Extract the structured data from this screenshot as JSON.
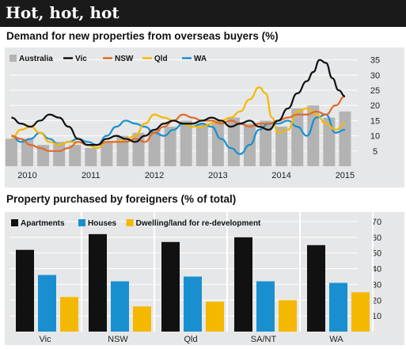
{
  "page_title": "Hot, hot, hot",
  "chart_data": [
    {
      "type": "line",
      "title": "Demand for new properties from overseas buyers (%)",
      "x_tick_labels": [
        "2010",
        "2011",
        "2012",
        "2013",
        "2014",
        "2015"
      ],
      "x_ticks": [
        2010,
        2011,
        2012,
        2013,
        2014,
        2015
      ],
      "xlim": [
        2009.72,
        2015.2
      ],
      "ylim": [
        0,
        37
      ],
      "y_ticks": [
        5,
        10,
        15,
        20,
        25,
        30,
        35
      ],
      "y_axis_side": "right",
      "grid": "horizontal",
      "legend_position": "top",
      "bar_series": {
        "name": "Australia",
        "color": "#b3b3b3",
        "x": [
          2009.75,
          2010.0,
          2010.25,
          2010.5,
          2010.75,
          2011.0,
          2011.25,
          2011.5,
          2011.75,
          2012.0,
          2012.25,
          2012.5,
          2012.75,
          2013.0,
          2013.25,
          2013.5,
          2013.75,
          2014.0,
          2014.25,
          2014.5,
          2014.75,
          2015.0
        ],
        "values": [
          9,
          9,
          7,
          8,
          7,
          6,
          8,
          10,
          11,
          12,
          13,
          15,
          14,
          15,
          16,
          14,
          15,
          13,
          19,
          20,
          16,
          18
        ]
      },
      "series": [
        {
          "name": "Vic",
          "color": "#111111",
          "x": [
            2009.75,
            2009.9,
            2010.05,
            2010.2,
            2010.35,
            2010.5,
            2010.65,
            2010.8,
            2010.95,
            2011.1,
            2011.25,
            2011.4,
            2011.55,
            2011.7,
            2011.85,
            2012.0,
            2012.15,
            2012.3,
            2012.45,
            2012.6,
            2012.75,
            2012.9,
            2013.05,
            2013.2,
            2013.35,
            2013.5,
            2013.65,
            2013.8,
            2013.95,
            2014.1,
            2014.25,
            2014.4,
            2014.5,
            2014.6,
            2014.7,
            2014.8,
            2014.9,
            2015.0
          ],
          "values": [
            16,
            14,
            13,
            15,
            17,
            16,
            13,
            9,
            7,
            7,
            9,
            10,
            9,
            8,
            10,
            12,
            14,
            15,
            14,
            14,
            15,
            16,
            15,
            13,
            14,
            15,
            13,
            12,
            15,
            19,
            24,
            28,
            31,
            35,
            34,
            29,
            25,
            23
          ]
        },
        {
          "name": "NSW",
          "color": "#e06b2c",
          "x": [
            2009.75,
            2009.9,
            2010.05,
            2010.2,
            2010.35,
            2010.5,
            2010.65,
            2010.8,
            2010.95,
            2011.1,
            2011.25,
            2011.4,
            2011.55,
            2011.7,
            2011.85,
            2012.0,
            2012.15,
            2012.3,
            2012.45,
            2012.6,
            2012.75,
            2012.9,
            2013.05,
            2013.2,
            2013.35,
            2013.5,
            2013.65,
            2013.8,
            2013.95,
            2014.1,
            2014.25,
            2014.4,
            2014.55,
            2014.7,
            2014.85,
            2015.0
          ],
          "values": [
            10,
            9,
            7,
            6,
            5,
            5,
            6,
            8,
            7,
            7,
            8,
            8,
            8,
            9,
            8,
            11,
            13,
            15,
            17,
            16,
            15,
            15,
            14,
            15,
            14,
            13,
            14,
            14,
            15,
            16,
            17,
            17,
            18,
            17,
            20,
            23
          ]
        },
        {
          "name": "Qld",
          "color": "#f5b800",
          "x": [
            2009.75,
            2009.9,
            2010.05,
            2010.2,
            2010.35,
            2010.5,
            2010.65,
            2010.8,
            2010.95,
            2011.1,
            2011.25,
            2011.4,
            2011.55,
            2011.7,
            2011.85,
            2012.0,
            2012.15,
            2012.3,
            2012.45,
            2012.6,
            2012.75,
            2012.9,
            2013.05,
            2013.2,
            2013.35,
            2013.5,
            2013.65,
            2013.75,
            2013.85,
            2013.95,
            2014.1,
            2014.25,
            2014.4,
            2014.55,
            2014.7,
            2014.85,
            2015.0
          ],
          "values": [
            9,
            12,
            13,
            11,
            8,
            7,
            8,
            8,
            7,
            6,
            8,
            8,
            9,
            10,
            14,
            17,
            16,
            15,
            14,
            13,
            13,
            14,
            15,
            16,
            18,
            22,
            26,
            24,
            16,
            11,
            12,
            18,
            19,
            17,
            14,
            12,
            14
          ]
        },
        {
          "name": "WA",
          "color": "#1a8fd0",
          "x": [
            2009.75,
            2009.9,
            2010.05,
            2010.2,
            2010.35,
            2010.5,
            2010.65,
            2010.8,
            2010.95,
            2011.1,
            2011.25,
            2011.4,
            2011.55,
            2011.7,
            2011.85,
            2012.0,
            2012.15,
            2012.3,
            2012.45,
            2012.6,
            2012.75,
            2012.9,
            2013.05,
            2013.2,
            2013.35,
            2013.5,
            2013.65,
            2013.8,
            2013.95,
            2014.1,
            2014.25,
            2014.4,
            2014.55,
            2014.7,
            2014.85,
            2015.0
          ],
          "values": [
            10,
            8,
            9,
            11,
            9,
            7,
            8,
            9,
            8,
            7,
            10,
            13,
            15,
            14,
            13,
            11,
            10,
            12,
            14,
            13,
            14,
            13,
            9,
            6,
            4,
            7,
            12,
            14,
            14,
            15,
            13,
            10,
            16,
            17,
            11,
            12
          ]
        }
      ]
    },
    {
      "type": "bar",
      "title": "Property purchased by foreigners (% of total)",
      "categories": [
        "Vic",
        "NSW",
        "Qld",
        "SA/NT",
        "WA"
      ],
      "ylim": [
        0,
        73
      ],
      "y_ticks": [
        10,
        20,
        30,
        40,
        50,
        60,
        70
      ],
      "y_axis_side": "right",
      "grid": "horizontal",
      "legend_position": "top",
      "series": [
        {
          "name": "Apartments",
          "color": "#111111",
          "values": [
            52,
            62,
            57,
            60,
            55
          ]
        },
        {
          "name": "Houses",
          "color": "#1a8fd0",
          "values": [
            36,
            32,
            35,
            32,
            31
          ]
        },
        {
          "name": "Dwelling/land for re-development",
          "color": "#f5b800",
          "values": [
            22,
            16,
            19,
            20,
            25
          ]
        }
      ]
    }
  ]
}
